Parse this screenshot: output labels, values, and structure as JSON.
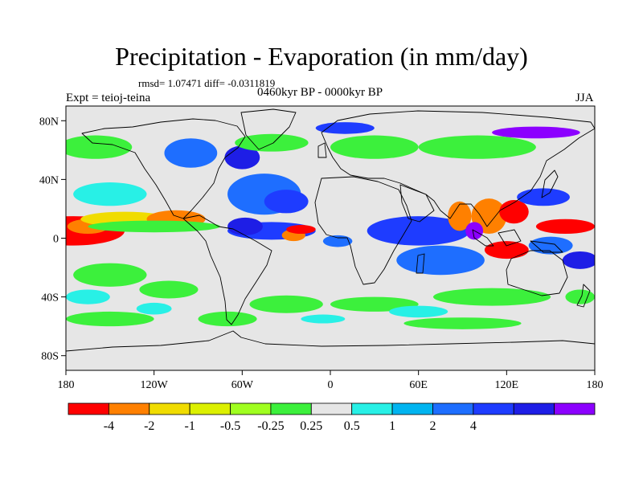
{
  "title": "Precipitation - Evaporation (in mm/day)",
  "stats": "rmsd= 1.07471  diff= -0.0311819",
  "period": "0460kyr BP - 0000kyr BP",
  "experiment": "Expt = teioj-teina",
  "season": "JJA",
  "lat_ticks": [
    "80N",
    "40N",
    "0",
    "40S",
    "80S"
  ],
  "lon_ticks": [
    "180",
    "120W",
    "60W",
    "0",
    "60E",
    "120E",
    "180"
  ],
  "colorbar": {
    "colors": [
      "#ff0000",
      "#ff8000",
      "#f0dc00",
      "#dcf000",
      "#a0ff20",
      "#3cf03c",
      "#e6e6e6",
      "#28f0e6",
      "#00b4f0",
      "#1e6eff",
      "#1e3cff",
      "#1e1ee6",
      "#8c00ff"
    ],
    "labels": [
      "-4",
      "-2",
      "-1",
      "-0.5",
      "-0.25",
      "0.25",
      "0.5",
      "1",
      "2",
      "4"
    ]
  },
  "legend_levels": [
    -4,
    -2,
    -1,
    -0.5,
    -0.25,
    0.25,
    0.5,
    1,
    2,
    4
  ],
  "field_patches": [
    {
      "lon": -175,
      "lat": 5,
      "rx": 35,
      "ry": 10,
      "level": 0
    },
    {
      "lon": -165,
      "lat": 8,
      "rx": 14,
      "ry": 5,
      "level": 1
    },
    {
      "lon": -140,
      "lat": 13,
      "rx": 30,
      "ry": 5,
      "level": 2
    },
    {
      "lon": -105,
      "lat": 13,
      "rx": 20,
      "ry": 6,
      "level": 1
    },
    {
      "lon": -120,
      "lat": 8,
      "rx": 45,
      "ry": 4,
      "level": 5
    },
    {
      "lon": -40,
      "lat": 5,
      "rx": 30,
      "ry": 6,
      "level": 10
    },
    {
      "lon": -25,
      "lat": 2,
      "rx": 8,
      "ry": 4,
      "level": 1
    },
    {
      "lon": -20,
      "lat": 6,
      "rx": 10,
      "ry": 3,
      "level": 0
    },
    {
      "lon": -58,
      "lat": 8,
      "rx": 12,
      "ry": 6,
      "level": 11
    },
    {
      "lon": -45,
      "lat": 30,
      "rx": 25,
      "ry": 14,
      "level": 9
    },
    {
      "lon": -30,
      "lat": 25,
      "rx": 15,
      "ry": 8,
      "level": 10
    },
    {
      "lon": -60,
      "lat": 55,
      "rx": 12,
      "ry": 8,
      "level": 11
    },
    {
      "lon": -95,
      "lat": 58,
      "rx": 18,
      "ry": 10,
      "level": 9
    },
    {
      "lon": -150,
      "lat": 30,
      "rx": 25,
      "ry": 8,
      "level": 7
    },
    {
      "lon": -160,
      "lat": 62,
      "rx": 25,
      "ry": 8,
      "level": 5
    },
    {
      "lon": -40,
      "lat": 65,
      "rx": 25,
      "ry": 6,
      "level": 5
    },
    {
      "lon": 30,
      "lat": 62,
      "rx": 30,
      "ry": 8,
      "level": 5
    },
    {
      "lon": 100,
      "lat": 62,
      "rx": 40,
      "ry": 8,
      "level": 5
    },
    {
      "lon": 140,
      "lat": 72,
      "rx": 30,
      "ry": 4,
      "level": 12
    },
    {
      "lon": 10,
      "lat": 75,
      "rx": 20,
      "ry": 4,
      "level": 10
    },
    {
      "lon": 60,
      "lat": 5,
      "rx": 35,
      "ry": 10,
      "level": 10
    },
    {
      "lon": 75,
      "lat": -15,
      "rx": 30,
      "ry": 10,
      "level": 9
    },
    {
      "lon": 88,
      "lat": 15,
      "rx": 8,
      "ry": 10,
      "level": 1
    },
    {
      "lon": 108,
      "lat": 15,
      "rx": 12,
      "ry": 12,
      "level": 1
    },
    {
      "lon": 125,
      "lat": 18,
      "rx": 10,
      "ry": 8,
      "level": 0
    },
    {
      "lon": 98,
      "lat": 5,
      "rx": 6,
      "ry": 6,
      "level": 12
    },
    {
      "lon": 120,
      "lat": -8,
      "rx": 15,
      "ry": 6,
      "level": 0
    },
    {
      "lon": 160,
      "lat": 8,
      "rx": 20,
      "ry": 5,
      "level": 0
    },
    {
      "lon": 145,
      "lat": 28,
      "rx": 18,
      "ry": 6,
      "level": 10
    },
    {
      "lon": 150,
      "lat": -5,
      "rx": 15,
      "ry": 6,
      "level": 9
    },
    {
      "lon": 170,
      "lat": -15,
      "rx": 12,
      "ry": 6,
      "level": 11
    },
    {
      "lon": 5,
      "lat": -2,
      "rx": 10,
      "ry": 4,
      "level": 9
    },
    {
      "lon": -150,
      "lat": -25,
      "rx": 25,
      "ry": 8,
      "level": 5
    },
    {
      "lon": -110,
      "lat": -35,
      "rx": 20,
      "ry": 6,
      "level": 5
    },
    {
      "lon": -30,
      "lat": -45,
      "rx": 25,
      "ry": 6,
      "level": 5
    },
    {
      "lon": 30,
      "lat": -45,
      "rx": 30,
      "ry": 5,
      "level": 5
    },
    {
      "lon": 110,
      "lat": -40,
      "rx": 40,
      "ry": 6,
      "level": 5
    },
    {
      "lon": -150,
      "lat": -55,
      "rx": 30,
      "ry": 5,
      "level": 5
    },
    {
      "lon": -70,
      "lat": -55,
      "rx": 20,
      "ry": 5,
      "level": 5
    },
    {
      "lon": 90,
      "lat": -58,
      "rx": 40,
      "ry": 4,
      "level": 5
    },
    {
      "lon": 170,
      "lat": -40,
      "rx": 10,
      "ry": 5,
      "level": 5
    },
    {
      "lon": -165,
      "lat": -40,
      "rx": 15,
      "ry": 5,
      "level": 7
    },
    {
      "lon": -120,
      "lat": -48,
      "rx": 12,
      "ry": 4,
      "level": 7
    },
    {
      "lon": 60,
      "lat": -50,
      "rx": 20,
      "ry": 4,
      "level": 7
    },
    {
      "lon": -5,
      "lat": -55,
      "rx": 15,
      "ry": 3,
      "level": 7
    }
  ]
}
